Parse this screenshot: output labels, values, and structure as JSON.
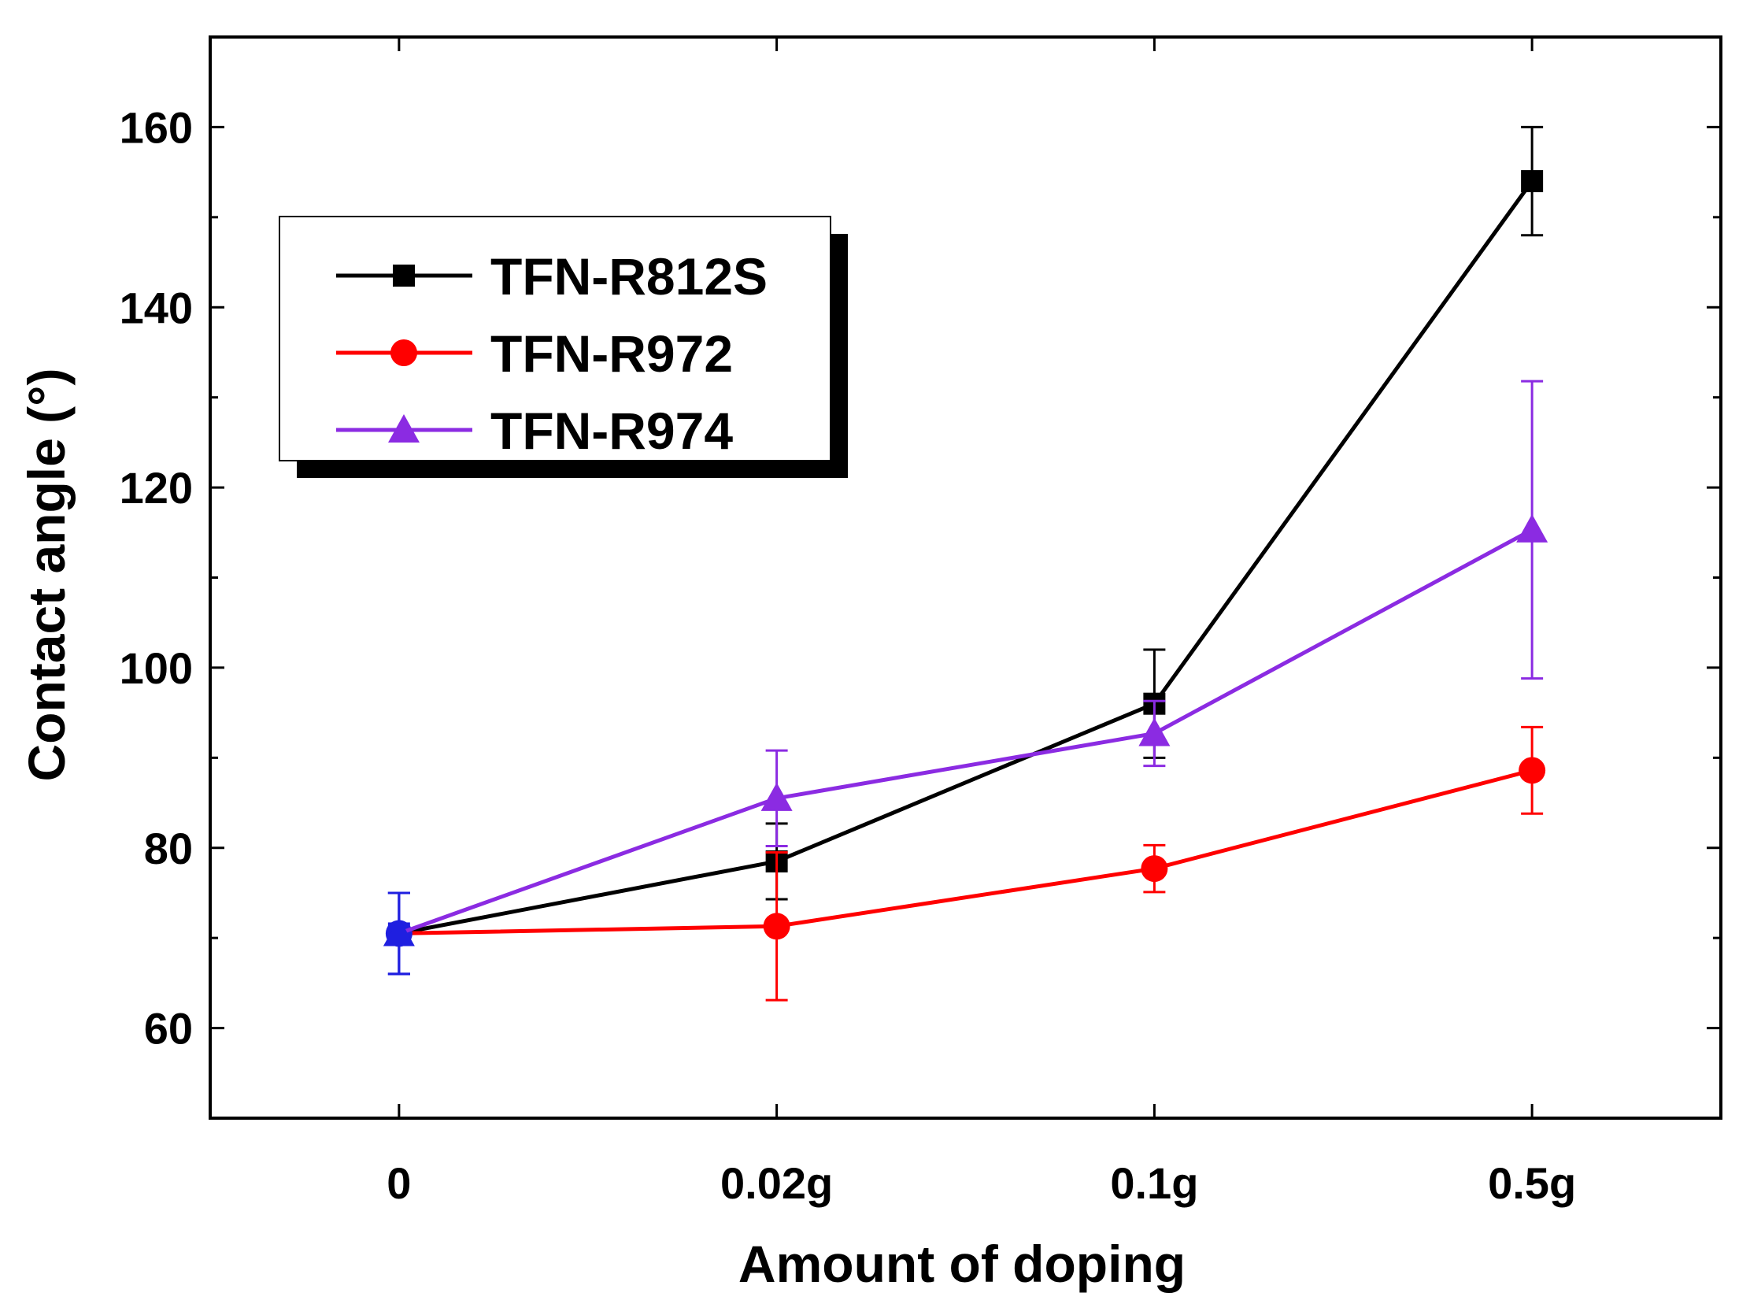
{
  "chart_data": {
    "type": "line",
    "title": "",
    "xlabel": "Amount of doping",
    "ylabel": "Contact angle (°)",
    "categories": [
      "0",
      "0.02g",
      "0.1g",
      "0.5g"
    ],
    "ylim": [
      50,
      170
    ],
    "yticks": [
      60,
      80,
      100,
      120,
      140,
      160
    ],
    "y_minor_step": 10,
    "x_range": [
      -0.5,
      3.5
    ],
    "grid": false,
    "legend_position": "upper-left",
    "series": [
      {
        "name": "TFN-R812S",
        "color": "#000000",
        "marker": "square",
        "values": [
          70.5,
          78.5,
          96,
          154
        ],
        "errors": [
          4.5,
          4.2,
          6,
          6
        ]
      },
      {
        "name": "TFN-R972",
        "color": "#ff0000",
        "marker": "circle",
        "values": [
          70.5,
          71.3,
          77.7,
          88.6
        ],
        "errors": [
          4.5,
          8.2,
          2.6,
          4.8
        ]
      },
      {
        "name": "TFN-R974",
        "color": "#8b2be2",
        "marker": "triangle",
        "values": [
          70.5,
          85.5,
          92.7,
          115.3
        ],
        "errors": [
          4.5,
          5.3,
          3.6,
          16.5
        ]
      }
    ]
  }
}
